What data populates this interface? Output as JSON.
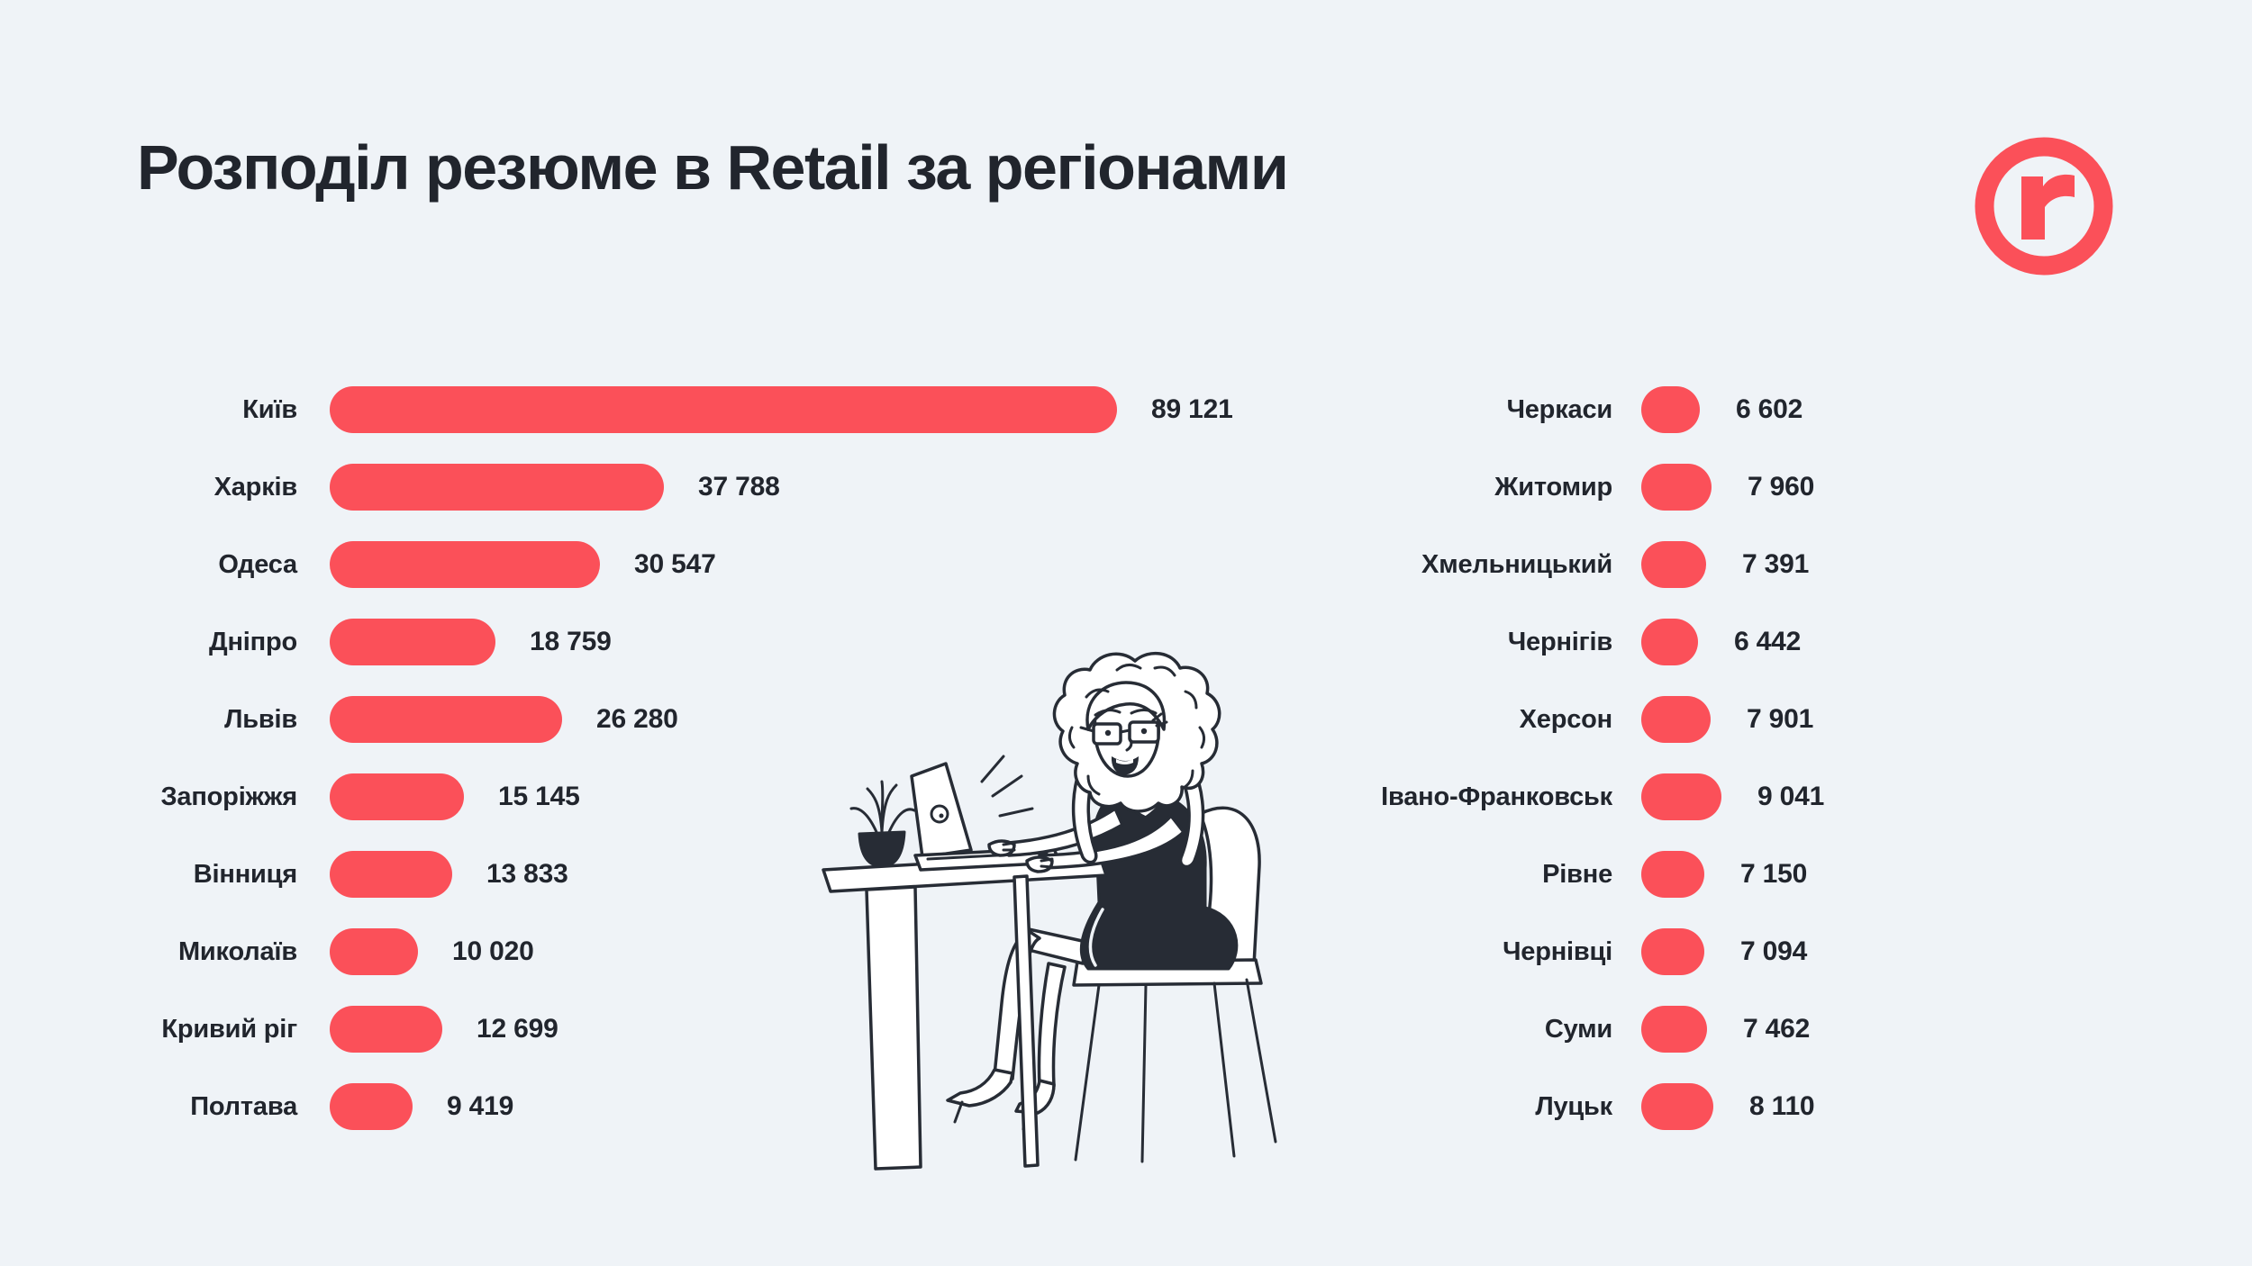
{
  "title": "Розподіл резюме в Retail за регіонами",
  "logo": {
    "letter": "r",
    "color": "#fb5059"
  },
  "colors": {
    "background": "#eff3f7",
    "bar": "#fb5059",
    "text": "#21252d"
  },
  "chart_data": {
    "type": "bar",
    "orientation": "horizontal",
    "title": "Розподіл резюме в Retail за регіонами",
    "value_label": "резюме",
    "max_value": 89121,
    "xlim": [
      0,
      89121
    ],
    "grid": false,
    "legend": false,
    "groups": [
      {
        "position": "left",
        "categories": [
          "Київ",
          "Харків",
          "Одеса",
          "Дніпро",
          "Львів",
          "Запоріжжя",
          "Вінниця",
          "Миколаїв",
          "Кривий ріг",
          "Полтава"
        ],
        "values": [
          89121,
          37788,
          30547,
          18759,
          26280,
          15145,
          13833,
          10020,
          12699,
          9419
        ],
        "display": [
          "89 121",
          "37 788",
          "30 547",
          "18 759",
          "26 280",
          "15 145",
          "13 833",
          "10 020",
          "12 699",
          "9 419"
        ]
      },
      {
        "position": "right",
        "categories": [
          "Черкаси",
          "Житомир",
          "Хмельницький",
          "Чернігів",
          "Херсон",
          "Івано-Франковськ",
          "Рівне",
          "Чернівці",
          "Суми",
          "Луцьк"
        ],
        "values": [
          6602,
          7960,
          7391,
          6442,
          7901,
          9041,
          7150,
          7094,
          7462,
          8110
        ],
        "display": [
          "6 602",
          "7 960",
          "7 391",
          "6 442",
          "7 901",
          "9 041",
          "7 150",
          "7 094",
          "7 462",
          "8 110"
        ]
      }
    ]
  }
}
